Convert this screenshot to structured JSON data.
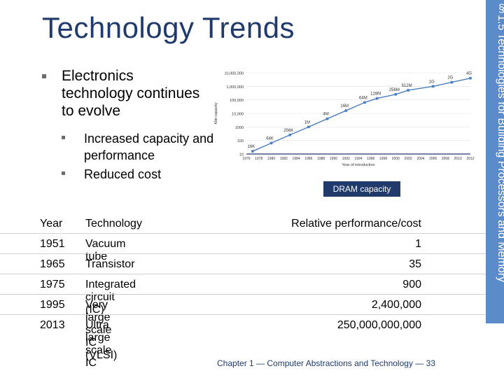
{
  "slide": {
    "title": "Technology Trends",
    "side_text": "§1.5 Technologies for Building Processors and Memory",
    "main_bullet": "Electronics technology continues to evolve",
    "sub_bullets": [
      "Increased capacity and performance",
      "Reduced cost"
    ],
    "chart_caption": "DRAM capacity",
    "footer": "Chapter 1 — Computer Abstractions and Technology — 33",
    "colors": {
      "title": "#1f3a6b",
      "band": "#5b8cc9",
      "series": "#4a7fc1"
    }
  },
  "table": {
    "headers": [
      "Year",
      "Technology",
      "Relative performance/cost"
    ],
    "rows": [
      [
        "1951",
        "Vacuum tube",
        "1"
      ],
      [
        "1965",
        "Transistor",
        "35"
      ],
      [
        "1975",
        "Integrated circuit (IC)",
        "900"
      ],
      [
        "1995",
        "Very large scale IC (VLSI)",
        "2,400,000"
      ],
      [
        "2013",
        "Ultra large scale IC",
        "250,000,000,000"
      ]
    ]
  },
  "chart_data": {
    "type": "line",
    "title": "",
    "xlabel": "Year of introduction",
    "ylabel": "Kbit capacity",
    "y_scale": "log",
    "ylim": [
      10,
      10000000
    ],
    "y_ticks": [
      "10",
      "100",
      "1000",
      "10,000",
      "100,000",
      "1,000,000",
      "10,000,000"
    ],
    "x_ticks": [
      "1976",
      "1978",
      "1980",
      "1982",
      "1984",
      "1986",
      "1988",
      "1990",
      "1992",
      "1994",
      "1996",
      "1998",
      "2000",
      "2002",
      "2004",
      "2006",
      "2008",
      "2010",
      "2012"
    ],
    "points": [
      {
        "x": 1977,
        "y": 16,
        "label": "16K"
      },
      {
        "x": 1980,
        "y": 64,
        "label": "64K"
      },
      {
        "x": 1983,
        "y": 256,
        "label": "256K"
      },
      {
        "x": 1986,
        "y": 1000,
        "label": "1M"
      },
      {
        "x": 1989,
        "y": 4000,
        "label": "4M"
      },
      {
        "x": 1992,
        "y": 16000,
        "label": "16M"
      },
      {
        "x": 1995,
        "y": 64000,
        "label": "64M"
      },
      {
        "x": 1997,
        "y": 128000,
        "label": "128M"
      },
      {
        "x": 2000,
        "y": 256000,
        "label": "256M"
      },
      {
        "x": 2002,
        "y": 512000,
        "label": "512M"
      },
      {
        "x": 2006,
        "y": 1000000,
        "label": "1G"
      },
      {
        "x": 2009,
        "y": 2000000,
        "label": "2G"
      },
      {
        "x": 2012,
        "y": 4000000,
        "label": "4G"
      }
    ]
  }
}
